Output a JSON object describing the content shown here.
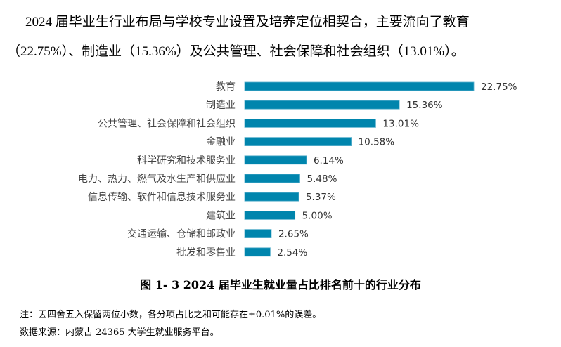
{
  "paragraph": {
    "line1": "2024 届毕业生行业布局与学校专业设置及培养定位相契合，主要流向了教育",
    "line2": "（22.75%）、制造业（15.36%）及公共管理、社会保障和社会组织（13.01%）。"
  },
  "chart_data": {
    "type": "bar",
    "orientation": "horizontal",
    "title": "图 1- 3   2024 届毕业生就业量占比排名前十的行业分布",
    "categories": [
      "教育",
      "制造业",
      "公共管理、社会保障和社会组织",
      "金融业",
      "科学研究和技术服务业",
      "电力、热力、燃气及水生产和供应业",
      "信息传输、软件和信息技术服务业",
      "建筑业",
      "交通运输、仓储和邮政业",
      "批发和零售业"
    ],
    "values": [
      22.75,
      15.36,
      13.01,
      10.58,
      6.14,
      5.48,
      5.37,
      5.0,
      2.65,
      2.54
    ],
    "data_labels": [
      "22.75%",
      "15.36%",
      "13.01%",
      "10.58%",
      "6.14%",
      "5.48%",
      "5.37%",
      "5.00%",
      "2.65%",
      "2.54%"
    ],
    "unit": "%",
    "grid": false,
    "axis_visible": false,
    "bar_color": "#0085ad"
  },
  "notes": {
    "note": "注：因四舍五入保留两位小数，各分项占比之和可能存在±0.01%的误差。",
    "source": "数据来源：内蒙古 24365 大学生就业服务平台。"
  }
}
